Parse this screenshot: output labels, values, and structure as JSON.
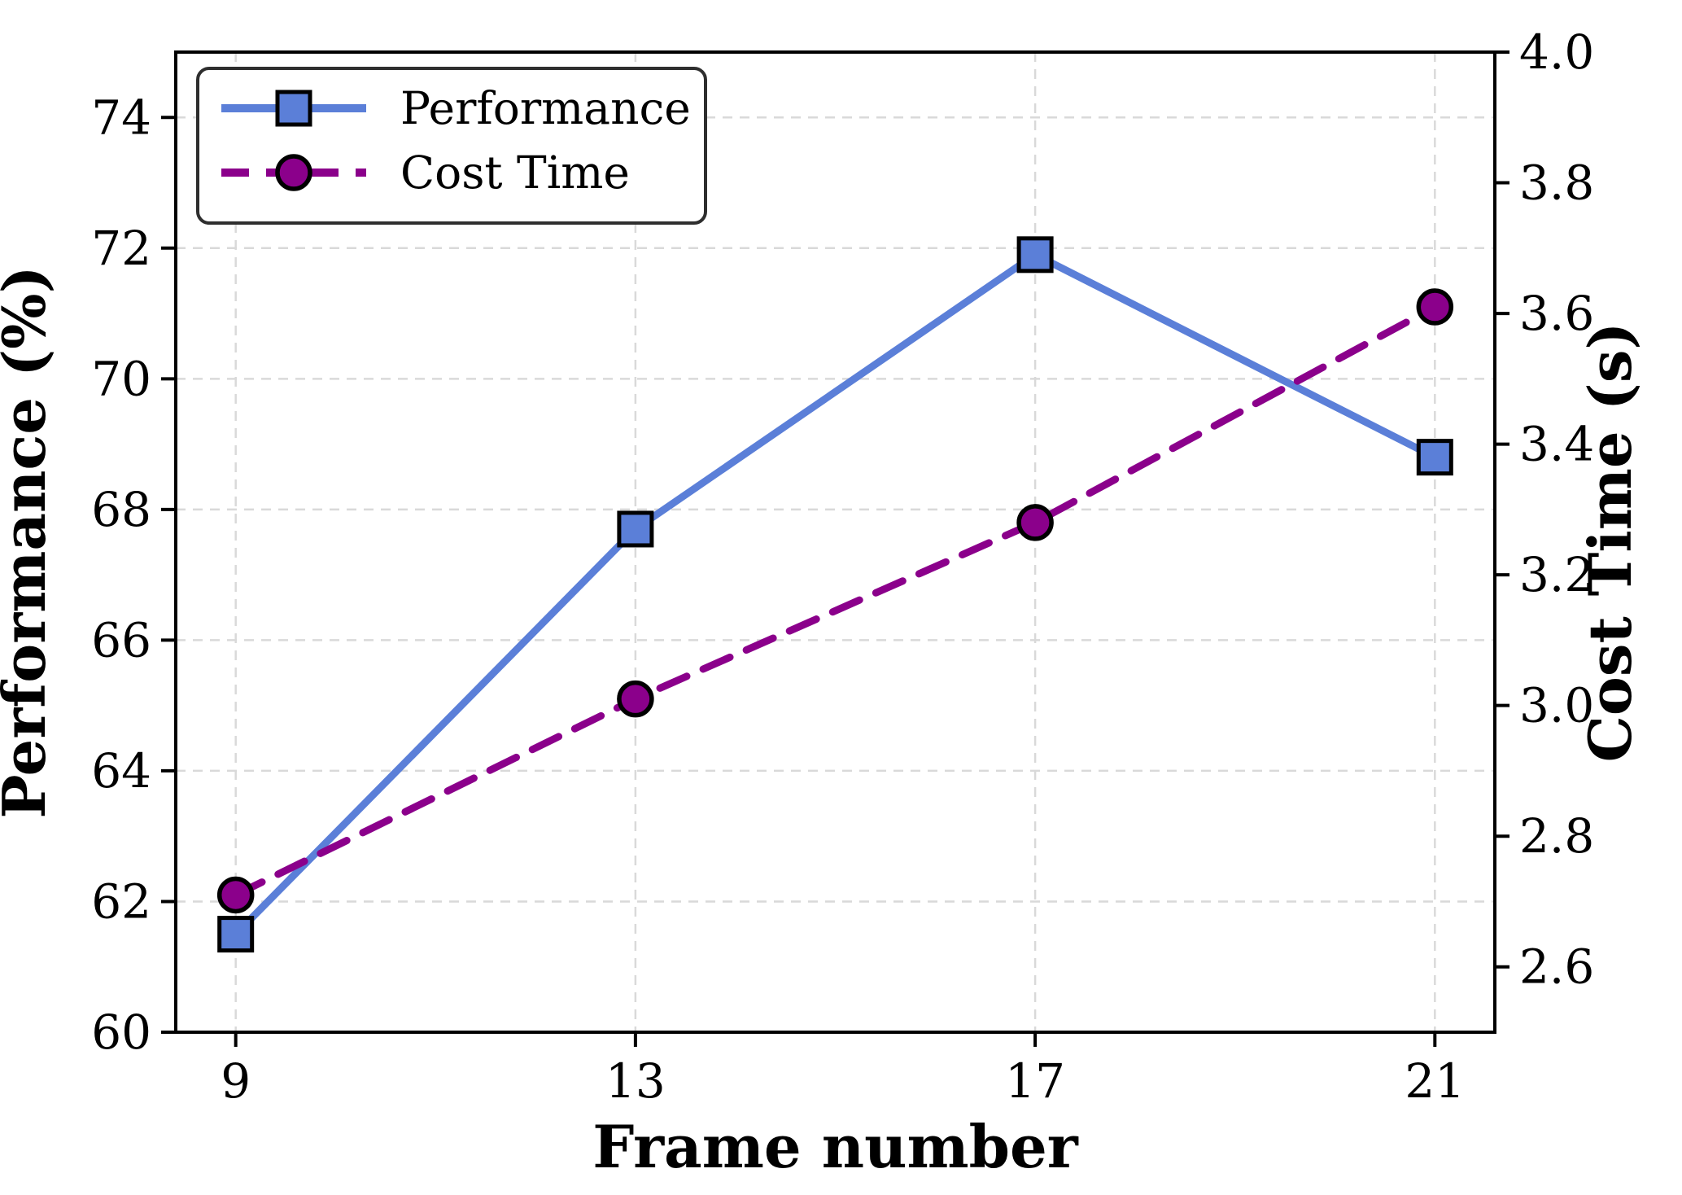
{
  "chart_data": {
    "type": "line",
    "x": [
      9,
      13,
      17,
      21
    ],
    "x_tick_labels": [
      "9",
      "13",
      "17",
      "21"
    ],
    "xlabel": "Frame number",
    "series": [
      {
        "name": "Performance",
        "axis": "left",
        "values": [
          61.5,
          67.7,
          71.9,
          68.8
        ],
        "color": "#5b7fd8",
        "marker": "square",
        "linestyle": "solid"
      },
      {
        "name": "Cost Time",
        "axis": "right",
        "values": [
          2.71,
          3.01,
          3.28,
          3.61
        ],
        "color": "#8b008b",
        "marker": "circle",
        "linestyle": "dashed"
      }
    ],
    "left_axis": {
      "label": "Performance (%)",
      "tick_values": [
        60,
        62,
        64,
        66,
        68,
        70,
        72,
        74
      ],
      "tick_labels": [
        "60",
        "62",
        "64",
        "66",
        "68",
        "70",
        "72",
        "74"
      ],
      "range": [
        60,
        75
      ]
    },
    "right_axis": {
      "label": "Cost Time (s)",
      "tick_values": [
        2.6,
        2.8,
        3.0,
        3.2,
        3.4,
        3.6,
        3.8,
        4.0
      ],
      "tick_labels": [
        "2.6",
        "2.8",
        "3.0",
        "3.2",
        "3.4",
        "3.6",
        "3.8",
        "4.0"
      ],
      "range": [
        2.5,
        4.0
      ]
    },
    "x_range": [
      8.4,
      21.6
    ],
    "grid": true,
    "legend": {
      "position": "upper-left",
      "entries": [
        "Performance",
        "Cost Time"
      ]
    },
    "colors": {
      "performance_line": "#5b7fd8",
      "cost_time_line": "#8b008b",
      "marker_edge": "#000000",
      "gridline": "#d9d9d9",
      "spine": "#000000",
      "legend_border": "#2e2e2e",
      "background": "#ffffff"
    }
  }
}
